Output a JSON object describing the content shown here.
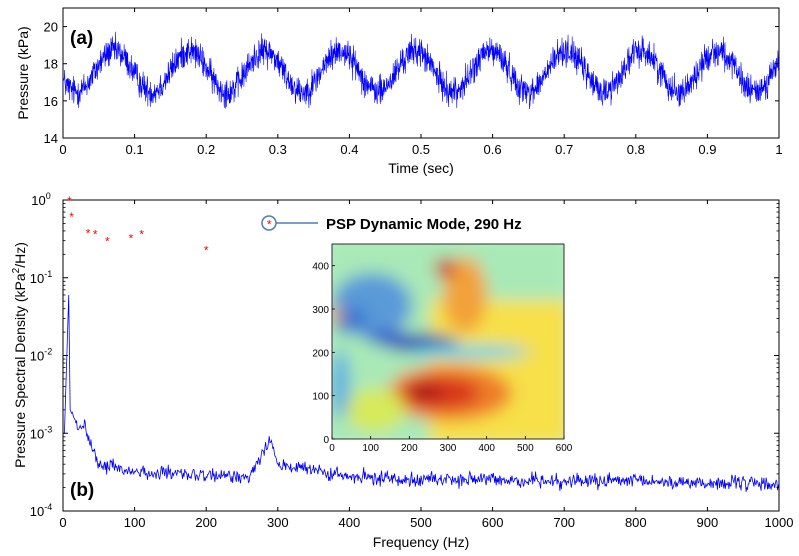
{
  "chart_data": [
    {
      "panel_label": "(a)",
      "type": "line",
      "xlabel": "Time (sec)",
      "ylabel": "Pressure (kPa)",
      "xlim": [
        0,
        1
      ],
      "ylim": [
        14,
        21
      ],
      "xticks": [
        "0",
        "0.1",
        "0.2",
        "0.3",
        "0.4",
        "0.5",
        "0.6",
        "0.7",
        "0.8",
        "0.9",
        "1"
      ],
      "yticks": [
        "14",
        "16",
        "18",
        "20"
      ],
      "series": [
        {
          "color": "#0000ff",
          "description_values": {
            "mean": 17.6,
            "oscillation_amplitude": 1.1,
            "oscillation_frequency_hz": 9.5,
            "noise_amplitude": 1.2,
            "min_approx": 14.8,
            "max_approx": 20.4
          }
        }
      ],
      "grid": false
    },
    {
      "panel_label": "(b)",
      "type": "line",
      "xlabel": "Frequency (Hz)",
      "ylabel": "Pressure Spectral Density (kPa2/Hz)",
      "ylabel_parts": {
        "pre": "Pressure Spectral Density (kPa",
        "sup": "2",
        "post": "/Hz)"
      },
      "xlim": [
        0,
        1000
      ],
      "ylim": [
        0.0001,
        1
      ],
      "yscale": "log",
      "xticks": [
        "0",
        "100",
        "200",
        "300",
        "400",
        "500",
        "600",
        "700",
        "800",
        "900",
        "1000"
      ],
      "yticks": [
        {
          "base": "10",
          "exp": "0",
          "value": 1
        },
        {
          "base": "10",
          "exp": "-1",
          "value": 0.1
        },
        {
          "base": "10",
          "exp": "-2",
          "value": 0.01
        },
        {
          "base": "10",
          "exp": "-3",
          "value": 0.001
        },
        {
          "base": "10",
          "exp": "-4",
          "value": 0.0001
        }
      ],
      "series": [
        {
          "color": "#0000ff",
          "key_points": [
            {
              "x": 2,
              "y": 0.001
            },
            {
              "x": 8,
              "y": 0.06
            },
            {
              "x": 10,
              "y": 0.002
            },
            {
              "x": 20,
              "y": 0.0012
            },
            {
              "x": 30,
              "y": 0.0013
            },
            {
              "x": 40,
              "y": 0.0006
            },
            {
              "x": 50,
              "y": 0.0004
            },
            {
              "x": 100,
              "y": 0.00032
            },
            {
              "x": 200,
              "y": 0.00028
            },
            {
              "x": 260,
              "y": 0.00028
            },
            {
              "x": 280,
              "y": 0.0006
            },
            {
              "x": 290,
              "y": 0.00085
            },
            {
              "x": 300,
              "y": 0.0004
            },
            {
              "x": 400,
              "y": 0.00027
            },
            {
              "x": 600,
              "y": 0.00025
            },
            {
              "x": 800,
              "y": 0.00024
            },
            {
              "x": 1000,
              "y": 0.00022
            }
          ]
        }
      ],
      "markers": {
        "color": "#ff0000",
        "symbol": "*",
        "points": [
          {
            "x": 9,
            "y": 1.0
          },
          {
            "x": 12,
            "y": 0.62
          },
          {
            "x": 35,
            "y": 0.38
          },
          {
            "x": 45,
            "y": 0.37
          },
          {
            "x": 62,
            "y": 0.3
          },
          {
            "x": 95,
            "y": 0.33
          },
          {
            "x": 110,
            "y": 0.37
          },
          {
            "x": 200,
            "y": 0.23
          },
          {
            "x": 288,
            "y": 0.5
          }
        ]
      },
      "annotation": "PSP Dynamic Mode, 290 Hz",
      "grid": false,
      "inset": {
        "type": "heatmap",
        "xlim": [
          0,
          600
        ],
        "ylim": [
          0,
          450
        ],
        "xticks": [
          "0",
          "100",
          "200",
          "300",
          "400",
          "500",
          "600"
        ],
        "yticks": [
          "0",
          "100",
          "200",
          "300",
          "400"
        ],
        "colormap": "jet"
      }
    }
  ]
}
